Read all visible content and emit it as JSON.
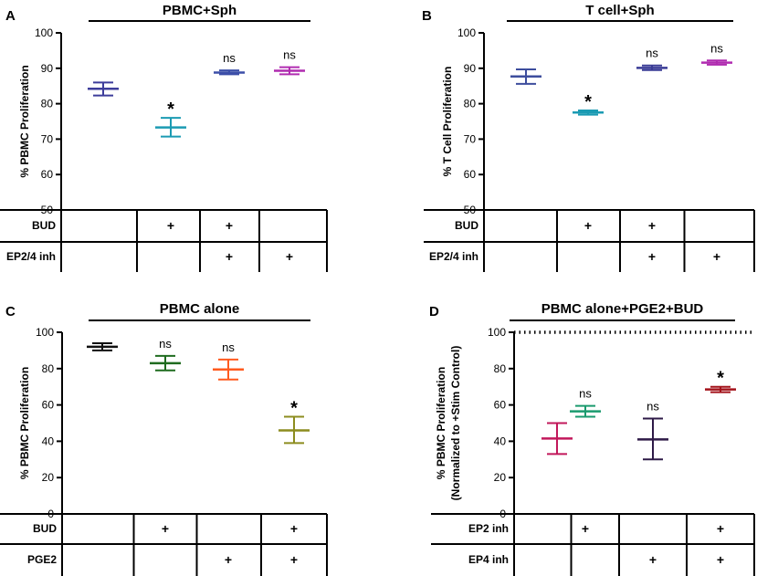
{
  "figure": {
    "caption_note": ""
  },
  "chart_data": [
    {
      "panel": "A",
      "type": "scatter",
      "title": "PBMC+Sph",
      "xlabel": "",
      "ylabel": "% PBMC Proliferation",
      "ylim": [
        50,
        100
      ],
      "yticks": [
        50,
        60,
        70,
        80,
        90,
        100
      ],
      "ref_line": null,
      "groups": [
        {
          "mean": 84.2,
          "low": 82.3,
          "high": 86.0,
          "color": "#3d3d9b",
          "sig": ""
        },
        {
          "mean": 73.3,
          "low": 70.7,
          "high": 76.0,
          "color": "#1b9bb3",
          "sig": "*"
        },
        {
          "mean": 88.8,
          "low": 88.3,
          "high": 89.4,
          "color": "#3c4fa8",
          "sig": "ns"
        },
        {
          "mean": 89.3,
          "low": 88.3,
          "high": 90.3,
          "color": "#b02cb0",
          "sig": "ns"
        }
      ],
      "rows": [
        {
          "label": "BUD",
          "marks": [
            "",
            "+",
            "+",
            ""
          ]
        },
        {
          "label": "EP2/4 inh",
          "marks": [
            "",
            "",
            "+",
            "+"
          ]
        }
      ]
    },
    {
      "panel": "B",
      "type": "scatter",
      "title": "T cell+Sph",
      "xlabel": "",
      "ylabel": "% T Cell Proliferation",
      "ylim": [
        50,
        100
      ],
      "yticks": [
        50,
        60,
        70,
        80,
        90,
        100
      ],
      "ref_line": null,
      "groups": [
        {
          "mean": 87.7,
          "low": 85.6,
          "high": 89.7,
          "color": "#3d4d9d",
          "sig": ""
        },
        {
          "mean": 77.5,
          "low": 76.9,
          "high": 78.1,
          "color": "#1b9bb3",
          "sig": "*"
        },
        {
          "mean": 90.1,
          "low": 89.5,
          "high": 90.8,
          "color": "#3a3c96",
          "sig": "ns"
        },
        {
          "mean": 91.6,
          "low": 91.0,
          "high": 92.2,
          "color": "#b02cb0",
          "sig": "ns"
        }
      ],
      "rows": [
        {
          "label": "BUD",
          "marks": [
            "",
            "+",
            "+",
            ""
          ]
        },
        {
          "label": "EP2/4 inh",
          "marks": [
            "",
            "",
            "+",
            "+"
          ]
        }
      ]
    },
    {
      "panel": "C",
      "type": "scatter",
      "title": "PBMC alone",
      "xlabel": "",
      "ylabel": "% PBMC Proliferation",
      "ylim": [
        0,
        100
      ],
      "yticks": [
        0,
        20,
        40,
        60,
        80,
        100
      ],
      "ref_line": null,
      "groups": [
        {
          "mean": 92.0,
          "low": 90.0,
          "high": 94.0,
          "color": "#111111",
          "sig": ""
        },
        {
          "mean": 83.0,
          "low": 79.0,
          "high": 87.0,
          "color": "#1f6b1f",
          "sig": "ns"
        },
        {
          "mean": 79.5,
          "low": 74.0,
          "high": 85.0,
          "color": "#ff5a1f",
          "sig": "ns"
        },
        {
          "mean": 46.0,
          "low": 39.0,
          "high": 53.5,
          "color": "#8c8c1f",
          "sig": "*"
        }
      ],
      "rows": [
        {
          "label": "BUD",
          "marks": [
            "",
            "+",
            "",
            "+"
          ]
        },
        {
          "label": "PGE2",
          "marks": [
            "",
            "",
            "+",
            "+"
          ]
        }
      ]
    },
    {
      "panel": "D",
      "type": "scatter",
      "title": "PBMC alone+PGE2+BUD",
      "xlabel": "",
      "ylabel": "% PBMC Proliferation",
      "ylabel2": "(Normalized to +Stim Control)",
      "ylim": [
        0,
        100
      ],
      "yticks": [
        0,
        20,
        40,
        60,
        80,
        100
      ],
      "ref_line": 100,
      "groups": [
        {
          "mean": 41.5,
          "low": 33.0,
          "high": 50.0,
          "color": "#c2185b",
          "sig": ""
        },
        {
          "mean": 56.5,
          "low": 53.5,
          "high": 59.5,
          "color": "#1a9a6e",
          "sig": "ns"
        },
        {
          "mean": 41.0,
          "low": 30.0,
          "high": 52.5,
          "color": "#2e1a47",
          "sig": "ns"
        },
        {
          "mean": 68.5,
          "low": 67.0,
          "high": 70.0,
          "color": "#a3121a",
          "sig": "*"
        }
      ],
      "rows": [
        {
          "label": "EP2 inh",
          "marks": [
            "",
            "+",
            "",
            "+"
          ]
        },
        {
          "label": "EP4 inh",
          "marks": [
            "",
            "",
            "+",
            "+"
          ]
        }
      ]
    }
  ]
}
